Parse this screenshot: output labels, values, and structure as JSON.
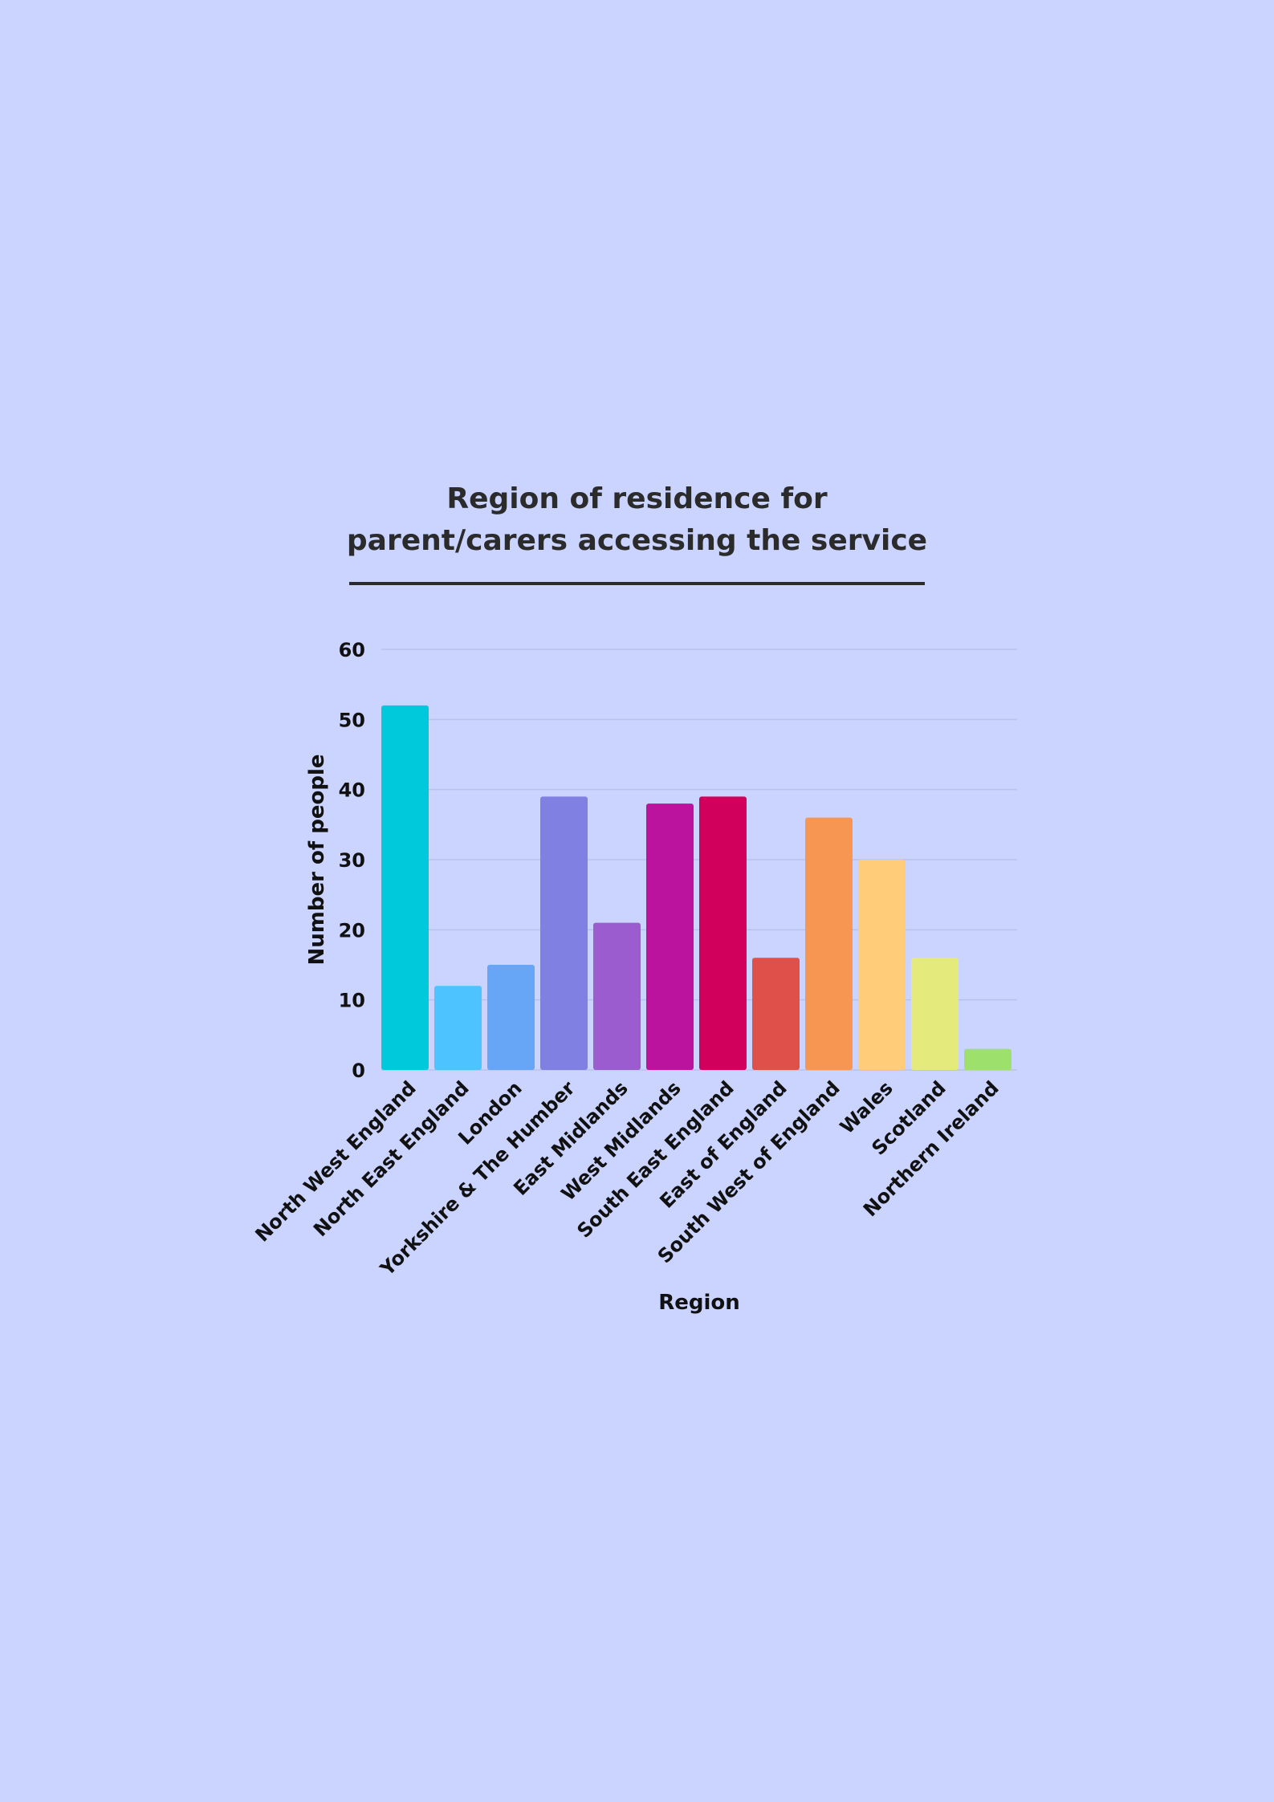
{
  "title_lines": [
    "Region of residence for",
    "parent/carers accessing the service"
  ],
  "chart_data": {
    "type": "bar",
    "title": "Region of residence for parent/carers accessing the service",
    "xlabel": "Region",
    "ylabel": "Number of people",
    "ylim": [
      0,
      60
    ],
    "yticks": [
      "0",
      "10",
      "20",
      "30",
      "40",
      "50",
      "60"
    ],
    "grid": true,
    "categories": [
      "North West England",
      "North East England",
      "London",
      "Yorkshire & The Humber",
      "East Midlands",
      "West Midlands",
      "South East England",
      "East of England",
      "South West of England",
      "Wales",
      "Scotland",
      "Northern Ireland"
    ],
    "values": [
      52,
      12,
      15,
      39,
      21,
      38,
      39,
      16,
      36,
      30,
      16,
      3
    ],
    "colors": [
      "#00c9dc",
      "#4dc3ff",
      "#67a5f7",
      "#8080e3",
      "#9b5ccf",
      "#bb139e",
      "#d0005c",
      "#e0504a",
      "#f79652",
      "#ffcc7a",
      "#e5ea7d",
      "#9ee06c"
    ]
  }
}
